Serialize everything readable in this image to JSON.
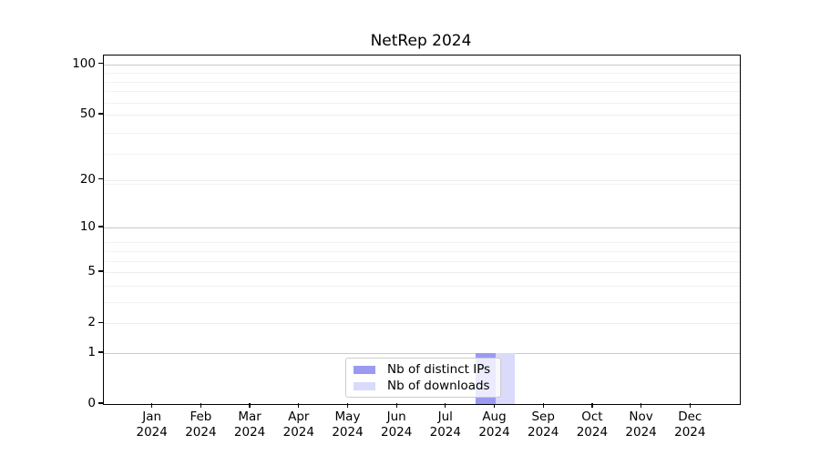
{
  "title": "NetRep 2024",
  "chart_data": {
    "type": "bar",
    "title": "NetRep 2024",
    "categories": [
      "Jan 2024",
      "Feb 2024",
      "Mar 2024",
      "Apr 2024",
      "May 2024",
      "Jun 2024",
      "Jul 2024",
      "Aug 2024",
      "Sep 2024",
      "Oct 2024",
      "Nov 2024",
      "Dec 2024"
    ],
    "series": [
      {
        "name": "Nb of distinct IPs",
        "color": "#9a9af2",
        "values": [
          0,
          0,
          0,
          0,
          0,
          0,
          0,
          1,
          0,
          0,
          0,
          0
        ]
      },
      {
        "name": "Nb of downloads",
        "color": "#dadafa",
        "values": [
          0,
          0,
          0,
          0,
          0,
          0,
          0,
          1,
          0,
          0,
          0,
          0
        ]
      }
    ],
    "xlabel": "",
    "ylabel": "",
    "y_scale": "log10(1+y)",
    "ylim": [
      0,
      113
    ],
    "y_ticks": [
      0,
      1,
      2,
      5,
      10,
      20,
      50,
      100
    ],
    "y_major_gridlines": [
      1,
      10,
      100
    ],
    "y_mid_gridlines": [
      2,
      5,
      20,
      50
    ],
    "y_minor_gridlines": [
      3,
      4,
      6,
      7,
      8,
      19,
      29,
      39,
      59,
      69,
      79,
      89
    ],
    "grid": true,
    "legend_position": "bottom-center"
  },
  "x_axis": {
    "months": [
      "Jan",
      "Feb",
      "Mar",
      "Apr",
      "May",
      "Jun",
      "Jul",
      "Aug",
      "Sep",
      "Oct",
      "Nov",
      "Dec"
    ],
    "year": "2024"
  },
  "colors": {
    "bar_distinct_ips": "#9a9af2",
    "bar_downloads": "#dadafa",
    "axis": "#000000",
    "major_grid": "#c9c9c9",
    "minor_grid": "#f2f2f2",
    "legend_border": "#cccccc"
  }
}
